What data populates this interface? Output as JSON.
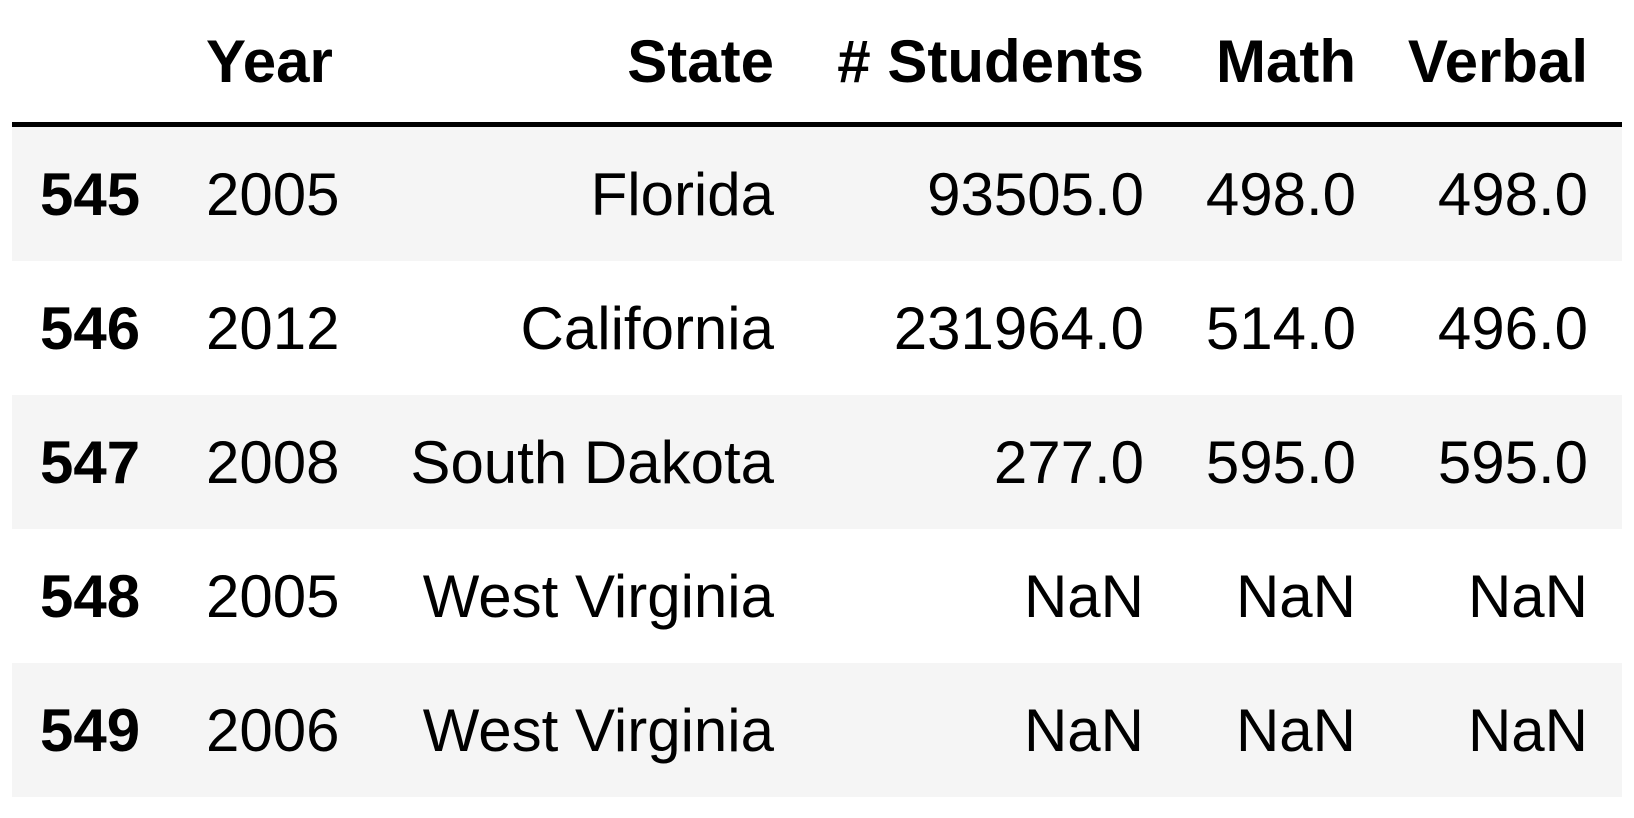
{
  "table": {
    "columns": [
      "Year",
      "State",
      "# Students",
      "Math",
      "Verbal"
    ],
    "rows": [
      {
        "index": "545",
        "year": "2005",
        "state": "Florida",
        "students": "93505.0",
        "math": "498.0",
        "verbal": "498.0"
      },
      {
        "index": "546",
        "year": "2012",
        "state": "California",
        "students": "231964.0",
        "math": "514.0",
        "verbal": "496.0"
      },
      {
        "index": "547",
        "year": "2008",
        "state": "South Dakota",
        "students": "277.0",
        "math": "595.0",
        "verbal": "595.0"
      },
      {
        "index": "548",
        "year": "2005",
        "state": "West Virginia",
        "students": "NaN",
        "math": "NaN",
        "verbal": "NaN"
      },
      {
        "index": "549",
        "year": "2006",
        "state": "West Virginia",
        "students": "NaN",
        "math": "NaN",
        "verbal": "NaN"
      }
    ]
  }
}
